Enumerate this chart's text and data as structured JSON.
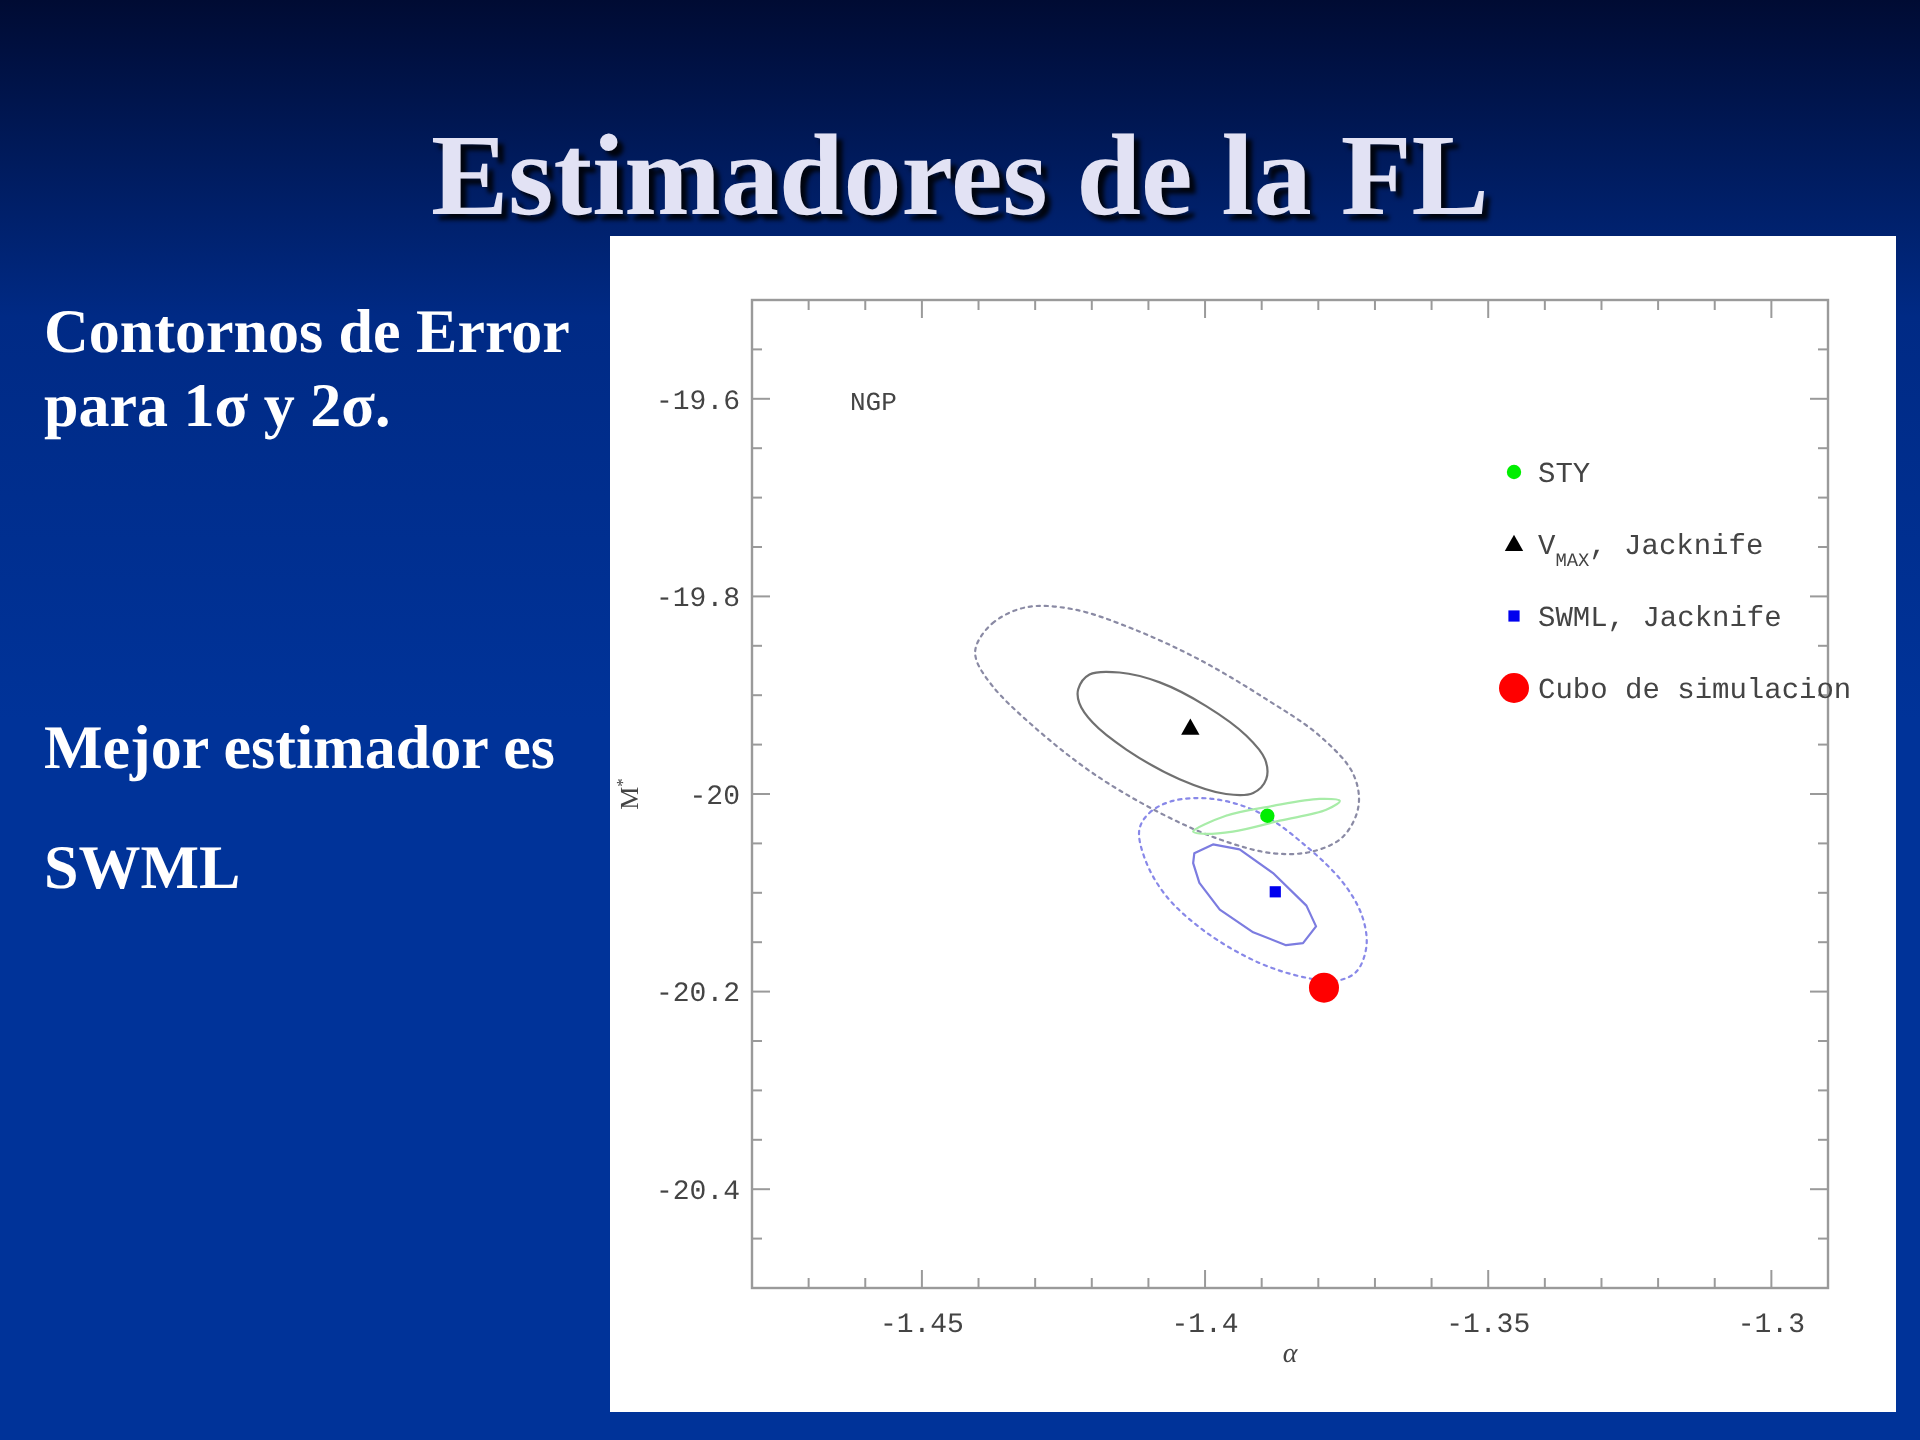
{
  "chart_data": {
    "type": "scatter",
    "title": "Estimadores de la FL",
    "xlabel": "α",
    "ylabel": "M$^{*}$",
    "annotations": [
      "NGP",
      "Contornos de Error para 1σ y 2σ.",
      "Mejor estimador es SWML"
    ],
    "xlim": [
      -1.48,
      -1.29
    ],
    "xticks": [
      {
        "value": -1.47,
        "label": null
      },
      {
        "value": -1.46,
        "label": null
      },
      -1.45,
      {
        "value": -1.44,
        "label": null
      },
      {
        "value": -1.43,
        "label": null
      },
      {
        "value": -1.42,
        "label": null
      },
      {
        "value": -1.41,
        "label": null
      },
      -1.4,
      {
        "value": -1.39,
        "label": null
      },
      {
        "value": -1.38,
        "label": null
      },
      {
        "value": -1.37,
        "label": null
      },
      {
        "value": -1.36,
        "label": null
      },
      -1.35,
      {
        "value": -1.34,
        "label": null
      },
      {
        "value": -1.33,
        "label": null
      },
      {
        "value": -1.32,
        "label": null
      },
      {
        "value": -1.31,
        "label": null
      },
      -1.3
    ],
    "ylim": [
      -20.5,
      -19.5
    ],
    "yticks": [
      {
        "value": -19.55,
        "label": null
      },
      -19.6,
      {
        "value": -19.65,
        "label": null
      },
      {
        "value": -19.7,
        "label": null
      },
      {
        "value": -19.75,
        "label": null
      },
      -19.8,
      {
        "value": -19.85,
        "label": null
      },
      {
        "value": -19.9,
        "label": null
      },
      {
        "value": -19.95,
        "label": null
      },
      -20,
      {
        "value": -20.05,
        "label": null
      },
      {
        "value": -20.1,
        "label": null
      },
      {
        "value": -20.15,
        "label": null
      },
      -20.2,
      {
        "value": -20.25,
        "label": null
      },
      {
        "value": -20.3,
        "label": null
      },
      {
        "value": -20.35,
        "label": null
      },
      -20.4,
      {
        "value": -20.45,
        "label": null
      }
    ],
    "legend": "top right",
    "series": [
      {
        "name": "STY",
        "marker": "circle",
        "color": "#00ee00",
        "x": [
          -1.389
        ],
        "values": [
          -20.022
        ]
      },
      {
        "name": "V$_{MAX}$, Jacknife",
        "marker": "triangle",
        "color": "#000000",
        "x": [
          -1.4026
        ],
        "values": [
          -19.933
        ]
      },
      {
        "name": "SWML, Jacknife",
        "marker": "square",
        "color": "#0000ee",
        "x": [
          -1.3876
        ],
        "values": [
          -20.099
        ]
      },
      {
        "name": "Cubo de simulacion",
        "marker": "circle",
        "color": "#ff0000",
        "x": [
          -1.379
        ],
        "values": [
          -20.196
        ]
      }
    ]
  }
}
